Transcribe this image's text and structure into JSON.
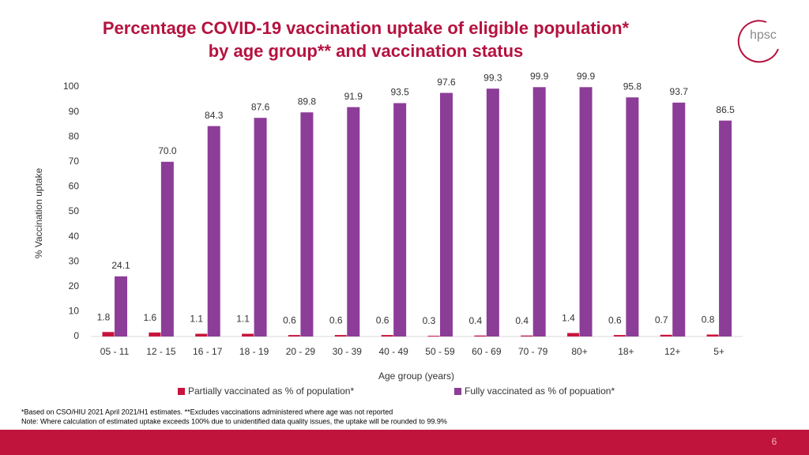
{
  "slide": {
    "logo": "hpsc",
    "footnote_1": "*Based on CSO/HIU 2021 April 2021/H1 estimates. **Excludes vaccinations administered where age was not reported",
    "footnote_2": "Note: Where calculation of estimated uptake exceeds 100% due to unidentified data quality issues, the uptake will be rounded to 99.9%",
    "page_number": 6
  },
  "chart_data": {
    "type": "bar",
    "title": [
      "Percentage COVID-19 vaccination uptake of eligible population*",
      "by age group** and vaccination status"
    ],
    "x_label": "Age group (years)",
    "y_label": "% Vaccination uptake",
    "categories": [
      "05 - 11",
      "12 - 15",
      "16 - 17",
      "18 - 19",
      "20 - 29",
      "30 - 39",
      "40 - 49",
      "50 - 59",
      "60 - 69",
      "70 - 79",
      "80+",
      "18+",
      "12+",
      "5+"
    ],
    "series": [
      {
        "name": "Partially vaccinated as % of population*",
        "color": "#c8143c",
        "values": [
          1.8,
          1.6,
          1.1,
          1.1,
          0.6,
          0.6,
          0.6,
          0.3,
          0.4,
          0.4,
          1.4,
          0.6,
          0.7,
          0.8
        ]
      },
      {
        "name": "Fully vaccinated as % of popuation*",
        "color": "#8c3d98",
        "values": [
          24.1,
          70,
          84.3,
          87.6,
          89.8,
          91.9,
          93.5,
          97.6,
          99.3,
          99.9,
          99.9,
          95.8,
          93.7,
          86.5
        ],
        "value_labels": [
          "24.1",
          "70.0",
          "84.3",
          "87.6",
          "89.8",
          "91.9",
          "93.5",
          "97.6",
          "99.3",
          "99.9",
          "99.9",
          "95.8",
          "93.7",
          "86.5"
        ]
      }
    ],
    "ylim": [
      0,
      100
    ],
    "yticks": [
      0,
      10,
      20,
      30,
      40,
      50,
      60,
      70,
      80,
      90,
      100
    ],
    "grid": false,
    "legend": "bottom"
  }
}
